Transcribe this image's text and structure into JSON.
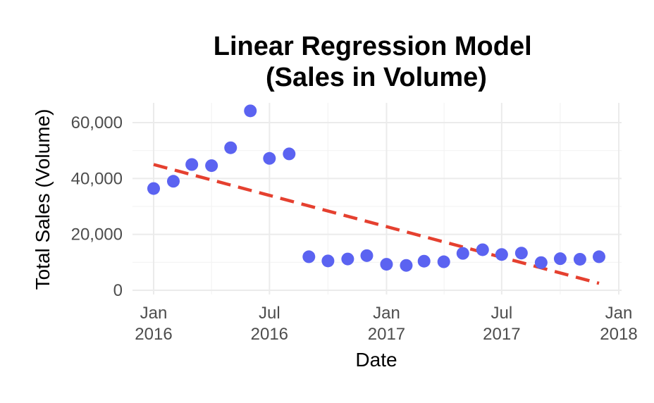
{
  "chart_data": {
    "type": "scatter",
    "title_lines": [
      "Linear Regression Model",
      "(Sales in Volume)"
    ],
    "xlabel": "Date",
    "ylabel": "Total Sales (Volume)",
    "x_range": [
      "2016-01-01",
      "2018-01-01"
    ],
    "ylim": [
      0,
      66000
    ],
    "grid": true,
    "y_ticks": [
      {
        "value": 0,
        "label": "0"
      },
      {
        "value": 20000,
        "label": "20,000"
      },
      {
        "value": 40000,
        "label": "40,000"
      },
      {
        "value": 60000,
        "label": "60,000"
      }
    ],
    "x_ticks": [
      {
        "date": "2016-01-01",
        "label_line1": "Jan",
        "label_line2": "2016"
      },
      {
        "date": "2016-07-01",
        "label_line1": "Jul",
        "label_line2": "2016"
      },
      {
        "date": "2017-01-01",
        "label_line1": "Jan",
        "label_line2": "2017"
      },
      {
        "date": "2017-07-01",
        "label_line1": "Jul",
        "label_line2": "2017"
      },
      {
        "date": "2018-01-01",
        "label_line1": "Jan",
        "label_line2": "2018"
      }
    ],
    "series": [
      {
        "type": "scatter",
        "color": "#5b63f1",
        "points": [
          {
            "x": "2016-01-01",
            "y": 36400
          },
          {
            "x": "2016-02-01",
            "y": 39000
          },
          {
            "x": "2016-03-01",
            "y": 45000
          },
          {
            "x": "2016-04-01",
            "y": 44600
          },
          {
            "x": "2016-05-01",
            "y": 51000
          },
          {
            "x": "2016-06-01",
            "y": 64200
          },
          {
            "x": "2016-07-01",
            "y": 47200
          },
          {
            "x": "2016-08-01",
            "y": 48800
          },
          {
            "x": "2016-09-01",
            "y": 12000
          },
          {
            "x": "2016-10-01",
            "y": 10500
          },
          {
            "x": "2016-11-01",
            "y": 11200
          },
          {
            "x": "2016-12-01",
            "y": 12400
          },
          {
            "x": "2017-01-01",
            "y": 9300
          },
          {
            "x": "2017-02-01",
            "y": 8900
          },
          {
            "x": "2017-03-01",
            "y": 10400
          },
          {
            "x": "2017-04-01",
            "y": 10200
          },
          {
            "x": "2017-05-01",
            "y": 13200
          },
          {
            "x": "2017-06-01",
            "y": 14500
          },
          {
            "x": "2017-07-01",
            "y": 12800
          },
          {
            "x": "2017-08-01",
            "y": 13300
          },
          {
            "x": "2017-09-01",
            "y": 9900
          },
          {
            "x": "2017-10-01",
            "y": 11300
          },
          {
            "x": "2017-11-01",
            "y": 11100
          },
          {
            "x": "2017-12-01",
            "y": 12000
          }
        ]
      },
      {
        "type": "line",
        "style": "dashed",
        "color": "#e5402f",
        "points": [
          {
            "x": "2016-01-01",
            "y": 45000
          },
          {
            "x": "2017-12-01",
            "y": 2500
          }
        ]
      }
    ]
  }
}
